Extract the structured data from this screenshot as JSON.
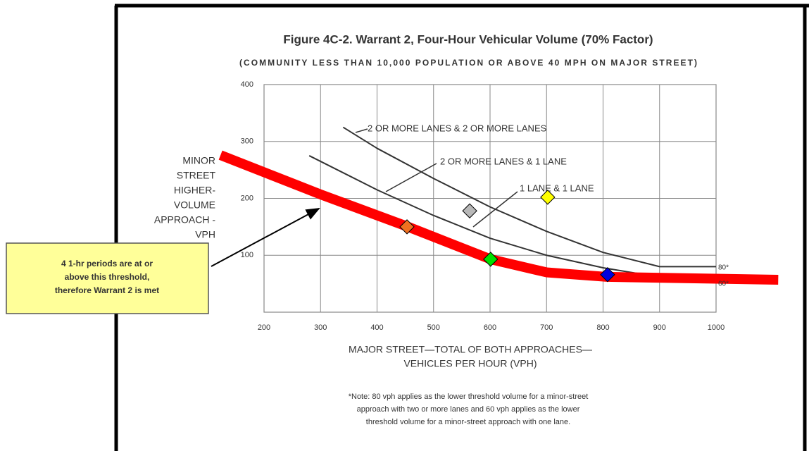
{
  "chart_data": {
    "type": "line",
    "title": "Figure 4C-2.  Warrant 2, Four-Hour Vehicular Volume (70% Factor)",
    "subtitle": "(COMMUNITY LESS THAN 10,000 POPULATION OR ABOVE 40 MPH ON MAJOR STREET)",
    "x_label": [
      "MAJOR STREET—TOTAL OF BOTH APPROACHES—",
      "VEHICLES PER HOUR (VPH)"
    ],
    "y_label": [
      "MINOR",
      "STREET",
      "HIGHER-",
      "VOLUME",
      "APPROACH -",
      "VPH"
    ],
    "note": [
      "*Note: 80 vph applies as the lower threshold volume for a minor-street",
      "approach with two or more lanes and 60 vph applies as the lower",
      "threshold volume for a minor-street approach with one lane."
    ],
    "xlim": [
      200,
      1000
    ],
    "ylim": [
      0,
      400
    ],
    "xticks": [
      200,
      300,
      400,
      500,
      600,
      700,
      800,
      900,
      1000
    ],
    "yticks": [
      100,
      200,
      300,
      400
    ],
    "grid": true,
    "series": [
      {
        "name": "2 OR MORE LANES & 2 OR MORE LANES",
        "color": "#333333",
        "x": [
          340,
          400,
          500,
          600,
          700,
          800,
          900,
          1000
        ],
        "values": [
          325,
          288,
          235,
          185,
          142,
          105,
          80,
          80
        ]
      },
      {
        "name": "2 OR MORE LANES & 1 LANE",
        "color": "#333333",
        "x": [
          280,
          400,
          500,
          600,
          700,
          800,
          880,
          1000
        ],
        "values": [
          275,
          215,
          170,
          130,
          100,
          78,
          65,
          60
        ]
      },
      {
        "name": "1 LANE & 1 LANE",
        "color": "#333333",
        "x": [
          530,
          600,
          700,
          800,
          900,
          1000
        ],
        "values": [
          120,
          95,
          72,
          60,
          60,
          60
        ]
      },
      {
        "color": "#ff0000",
        "x": [
          123,
          300,
          455,
          601,
          700,
          807,
          1110
        ],
        "values": [
          276,
          207,
          150,
          93,
          70,
          62,
          57
        ]
      }
    ],
    "points": [
      {
        "color": "#f07020",
        "x": 453,
        "y": 150
      },
      {
        "color": "#b8b8b8",
        "x": 564,
        "y": 178
      },
      {
        "color": "#ffff00",
        "x": 702,
        "y": 202
      },
      {
        "color": "#00e000",
        "x": 601,
        "y": 93
      },
      {
        "color": "#0000e0",
        "x": 808,
        "y": 66
      }
    ],
    "threshold_labels": [
      "80*",
      "60*"
    ],
    "annotation": [
      "4 1-hr periods are at or",
      "above this threshold,",
      "therefore Warrant 2 is met"
    ]
  }
}
